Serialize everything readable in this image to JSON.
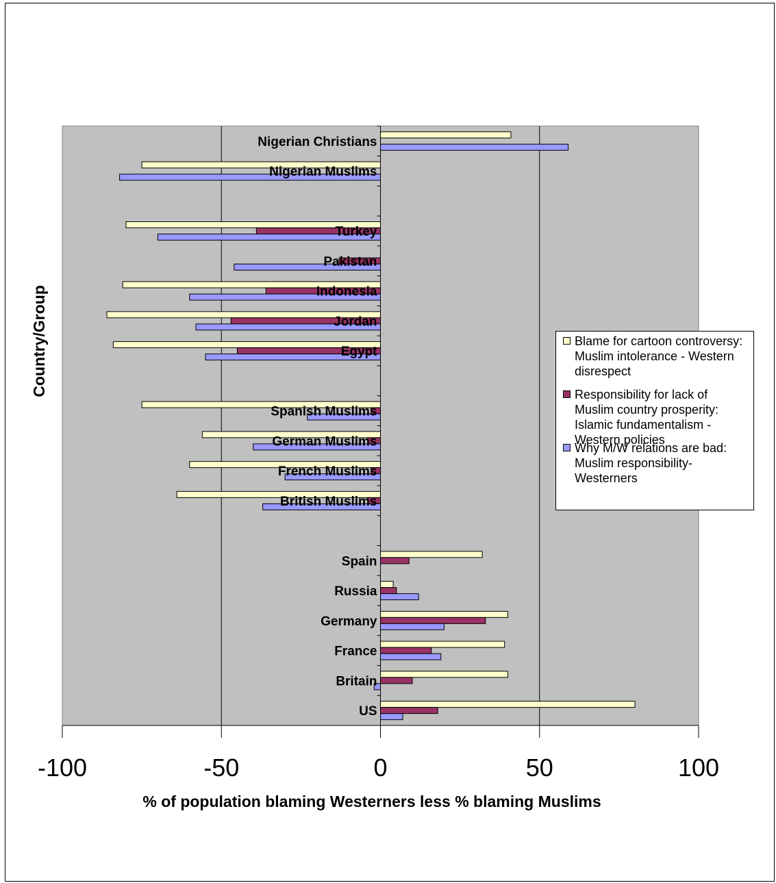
{
  "chart_data": {
    "type": "bar",
    "orientation": "horizontal",
    "xlabel": "% of population blaming Westerners less % blaming Muslims",
    "ylabel": "Country/Group",
    "xlim": [
      -100,
      100
    ],
    "xticks": [
      "-100",
      "-50",
      "0",
      "50",
      "100"
    ],
    "grid": true,
    "legend_position": "right",
    "categories": [
      "Nigerian Christians",
      "Nigerian Muslims",
      "",
      "Turkey",
      "Pakistan",
      "Indonesia",
      "Jordan",
      "Egypt",
      "",
      "Spanish Muslims",
      "German Muslims",
      "French Muslims",
      "British Muslims",
      "",
      "Spain",
      "Russia",
      "Germany",
      "France",
      "Britain",
      "US"
    ],
    "series": [
      {
        "name": "Blame for cartoon controversy: Muslim intolerance - Western disrespect",
        "color": "#ffffcc",
        "values": [
          41,
          -75,
          null,
          -80,
          null,
          -81,
          -86,
          -84,
          null,
          -75,
          -56,
          -60,
          -64,
          null,
          32,
          4,
          40,
          39,
          40,
          80
        ]
      },
      {
        "name": "Responsibility for lack of Muslim country prosperity: Islamic fundamentalism - Western policies",
        "color": "#993366",
        "values": [
          null,
          null,
          null,
          -39,
          -13,
          -36,
          -47,
          -45,
          null,
          -3,
          -4,
          -3,
          -4,
          null,
          9,
          5,
          33,
          16,
          10,
          18
        ]
      },
      {
        "name": "Why M/W relations are bad: Muslim responsibility- Westerners",
        "color": "#9999ff",
        "values": [
          59,
          -82,
          null,
          -70,
          -46,
          -60,
          -58,
          -55,
          null,
          -23,
          -40,
          -30,
          -37,
          null,
          null,
          12,
          20,
          19,
          -2,
          7
        ]
      }
    ]
  }
}
